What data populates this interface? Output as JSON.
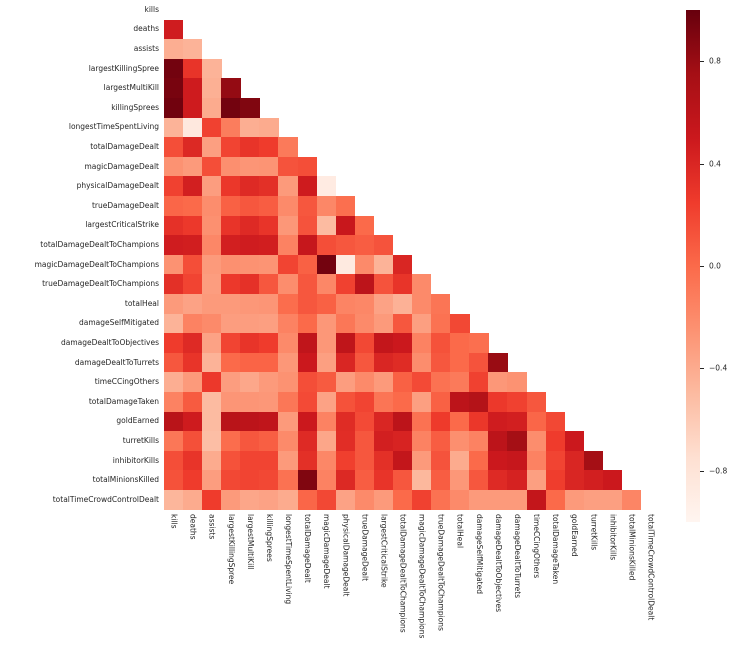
{
  "figure": {
    "kind": "correlation-heatmap",
    "background": "#ffffff",
    "label_color": "#262626"
  },
  "chart_data": {
    "type": "heatmap",
    "title": "",
    "mask": "upper triangle and diagonal hidden (lower-triangle correlation matrix)",
    "colormap": "Reds",
    "colormap_anchors": [
      "#fff5f0",
      "#fee0d2",
      "#fcbba1",
      "#fc9272",
      "#fb6a4a",
      "#ef3b2c",
      "#cb181d",
      "#a50f15",
      "#67000d"
    ],
    "vmin": -1,
    "vmax": 1,
    "legend_position": "right colorbar",
    "colorbar_ticks": [
      {
        "value": 0.8,
        "label": "0.8"
      },
      {
        "value": 0.4,
        "label": "0.4"
      },
      {
        "value": 0.0,
        "label": "0.0"
      },
      {
        "value": -0.4,
        "label": "−0.4"
      },
      {
        "value": -0.8,
        "label": "−0.8"
      }
    ],
    "labels": [
      "kills",
      "deaths",
      "assists",
      "largestKillingSpree",
      "largestMultiKill",
      "killingSprees",
      "longestTimeSpentLiving",
      "totalDamageDealt",
      "magicDamageDealt",
      "physicalDamageDealt",
      "trueDamageDealt",
      "largestCriticalStrike",
      "totalDamageDealtToChampions",
      "magicDamageDealtToChampions",
      "trueDamageDealtToChampions",
      "totalHeal",
      "damageSelfMitigated",
      "damageDealtToObjectives",
      "damageDealtToTurrets",
      "timeCCingOthers",
      "totalDamageTaken",
      "goldEarned",
      "turretKills",
      "inhibitorKills",
      "totalMinionsKilled",
      "totalTimeCrowdControlDealt"
    ],
    "matrix": [
      [],
      [
        0.47
      ],
      [
        -0.42,
        -0.45
      ],
      [
        0.95,
        0.3,
        -0.45
      ],
      [
        0.93,
        0.48,
        -0.43,
        0.82
      ],
      [
        0.96,
        0.48,
        -0.4,
        0.95,
        0.9
      ],
      [
        -0.45,
        -0.85,
        0.22,
        -0.12,
        -0.42,
        -0.4
      ],
      [
        0.15,
        0.38,
        -0.33,
        0.2,
        0.3,
        0.25,
        -0.1
      ],
      [
        -0.25,
        -0.3,
        0.15,
        -0.23,
        -0.27,
        -0.26,
        0.12,
        0.15
      ],
      [
        0.22,
        0.45,
        -0.32,
        0.28,
        0.37,
        0.33,
        -0.3,
        0.48,
        -0.88
      ],
      [
        0.02,
        0.0,
        -0.22,
        0.05,
        0.1,
        0.07,
        -0.2,
        0.1,
        -0.18,
        -0.03
      ],
      [
        0.32,
        0.27,
        -0.24,
        0.3,
        0.37,
        0.3,
        -0.28,
        0.12,
        -0.5,
        0.52,
        0.0
      ],
      [
        0.47,
        0.46,
        -0.18,
        0.45,
        0.47,
        0.46,
        -0.15,
        0.53,
        0.15,
        0.1,
        0.07,
        0.12
      ],
      [
        -0.25,
        0.15,
        -0.3,
        -0.24,
        -0.25,
        -0.26,
        0.2,
        0.05,
        0.95,
        -0.87,
        -0.2,
        -0.45,
        0.4
      ],
      [
        0.33,
        0.2,
        -0.32,
        0.27,
        0.32,
        0.1,
        -0.22,
        0.1,
        -0.18,
        0.22,
        0.6,
        0.12,
        0.3,
        -0.2
      ],
      [
        -0.3,
        -0.35,
        -0.3,
        -0.3,
        -0.28,
        -0.27,
        -0.02,
        0.1,
        0.05,
        -0.16,
        -0.18,
        -0.35,
        -0.44,
        -0.2,
        -0.07
      ],
      [
        -0.45,
        -0.15,
        -0.2,
        -0.32,
        -0.32,
        -0.33,
        -0.15,
        0.0,
        -0.28,
        -0.08,
        -0.2,
        -0.3,
        0.1,
        -0.33,
        -0.05,
        0.18
      ],
      [
        0.25,
        0.37,
        -0.35,
        0.2,
        0.3,
        0.25,
        -0.2,
        0.57,
        -0.28,
        0.58,
        0.18,
        0.55,
        0.5,
        -0.15,
        0.13,
        0.0,
        -0.03
      ],
      [
        0.1,
        0.3,
        -0.45,
        0.0,
        0.03,
        0.03,
        -0.28,
        0.5,
        -0.33,
        0.4,
        0.1,
        0.4,
        0.36,
        -0.22,
        0.1,
        0.0,
        0.12,
        0.8
      ],
      [
        -0.42,
        -0.3,
        0.27,
        -0.32,
        -0.38,
        -0.3,
        -0.25,
        0.15,
        0.08,
        -0.32,
        -0.2,
        -0.3,
        0.05,
        0.17,
        -0.05,
        -0.1,
        0.22,
        -0.28,
        -0.25
      ],
      [
        -0.15,
        0.08,
        -0.5,
        -0.27,
        -0.27,
        -0.28,
        -0.08,
        0.17,
        -0.35,
        0.13,
        0.2,
        -0.07,
        0.0,
        -0.33,
        0.05,
        0.6,
        0.65,
        0.27,
        0.22,
        0.1
      ],
      [
        0.62,
        0.48,
        -0.5,
        0.62,
        0.6,
        0.57,
        -0.3,
        0.5,
        -0.15,
        0.36,
        0.17,
        0.4,
        0.6,
        -0.05,
        0.26,
        0.0,
        0.28,
        0.47,
        0.45,
        0.02,
        0.18
      ],
      [
        -0.08,
        0.14,
        -0.52,
        -0.02,
        0.1,
        0.06,
        -0.2,
        0.37,
        -0.37,
        0.35,
        0.1,
        0.45,
        0.42,
        -0.15,
        0.07,
        -0.23,
        -0.15,
        0.6,
        0.75,
        -0.22,
        0.25,
        0.5
      ],
      [
        0.15,
        0.3,
        -0.4,
        0.13,
        0.2,
        0.2,
        -0.3,
        0.33,
        -0.18,
        0.23,
        0.1,
        0.33,
        0.55,
        -0.3,
        0.12,
        -0.4,
        0.0,
        0.5,
        0.53,
        -0.15,
        0.2,
        0.4,
        0.75
      ],
      [
        0.13,
        0.25,
        -0.32,
        0.18,
        0.2,
        0.18,
        -0.05,
        0.9,
        -0.15,
        0.38,
        0.07,
        0.3,
        0.1,
        -0.48,
        0.07,
        -0.28,
        0.1,
        0.37,
        0.43,
        -0.33,
        0.24,
        0.4,
        0.45,
        0.5
      ],
      [
        -0.47,
        -0.4,
        0.25,
        -0.3,
        -0.37,
        -0.35,
        -0.4,
        0.02,
        0.18,
        -0.35,
        -0.2,
        -0.3,
        0.0,
        0.22,
        -0.05,
        -0.2,
        -0.3,
        -0.3,
        -0.3,
        0.55,
        0.0,
        -0.3,
        -0.33,
        -0.33,
        -0.17
      ]
    ]
  }
}
